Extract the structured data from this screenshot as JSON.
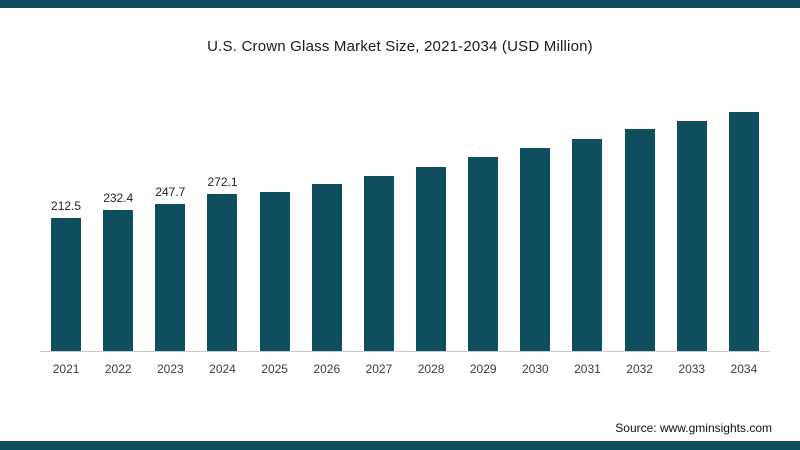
{
  "page": {
    "background": "#ffffff",
    "frame_color": "#0e4e5f"
  },
  "chart_data": {
    "type": "bar",
    "title": "U.S. Crown Glass Market Size, 2021-2034 (USD Million)",
    "categories": [
      "2021",
      "2022",
      "2023",
      "2024",
      "2025",
      "2026",
      "2027",
      "2028",
      "2029",
      "2030",
      "2031",
      "2032",
      "2033",
      "2034"
    ],
    "values": [
      212.5,
      232.4,
      247.7,
      272.1,
      277,
      297,
      317,
      339,
      364,
      386,
      409,
      433,
      453,
      476
    ],
    "data_labels": [
      "212.5",
      "232.4",
      "247.7",
      "272.1",
      "",
      "",
      "",
      "",
      "",
      "",
      "",
      "",
      "",
      ""
    ],
    "bar_color": "#0e4e5f",
    "xlabel": "",
    "ylabel": "",
    "legend": "none",
    "grid": false,
    "axis_baseline_color": "#c9c9c9",
    "note": "Values for 2025-2034 estimated from bar heights; only 2021-2024 carry printed data labels"
  },
  "source": {
    "label": "Source: www.gminsights.com"
  }
}
